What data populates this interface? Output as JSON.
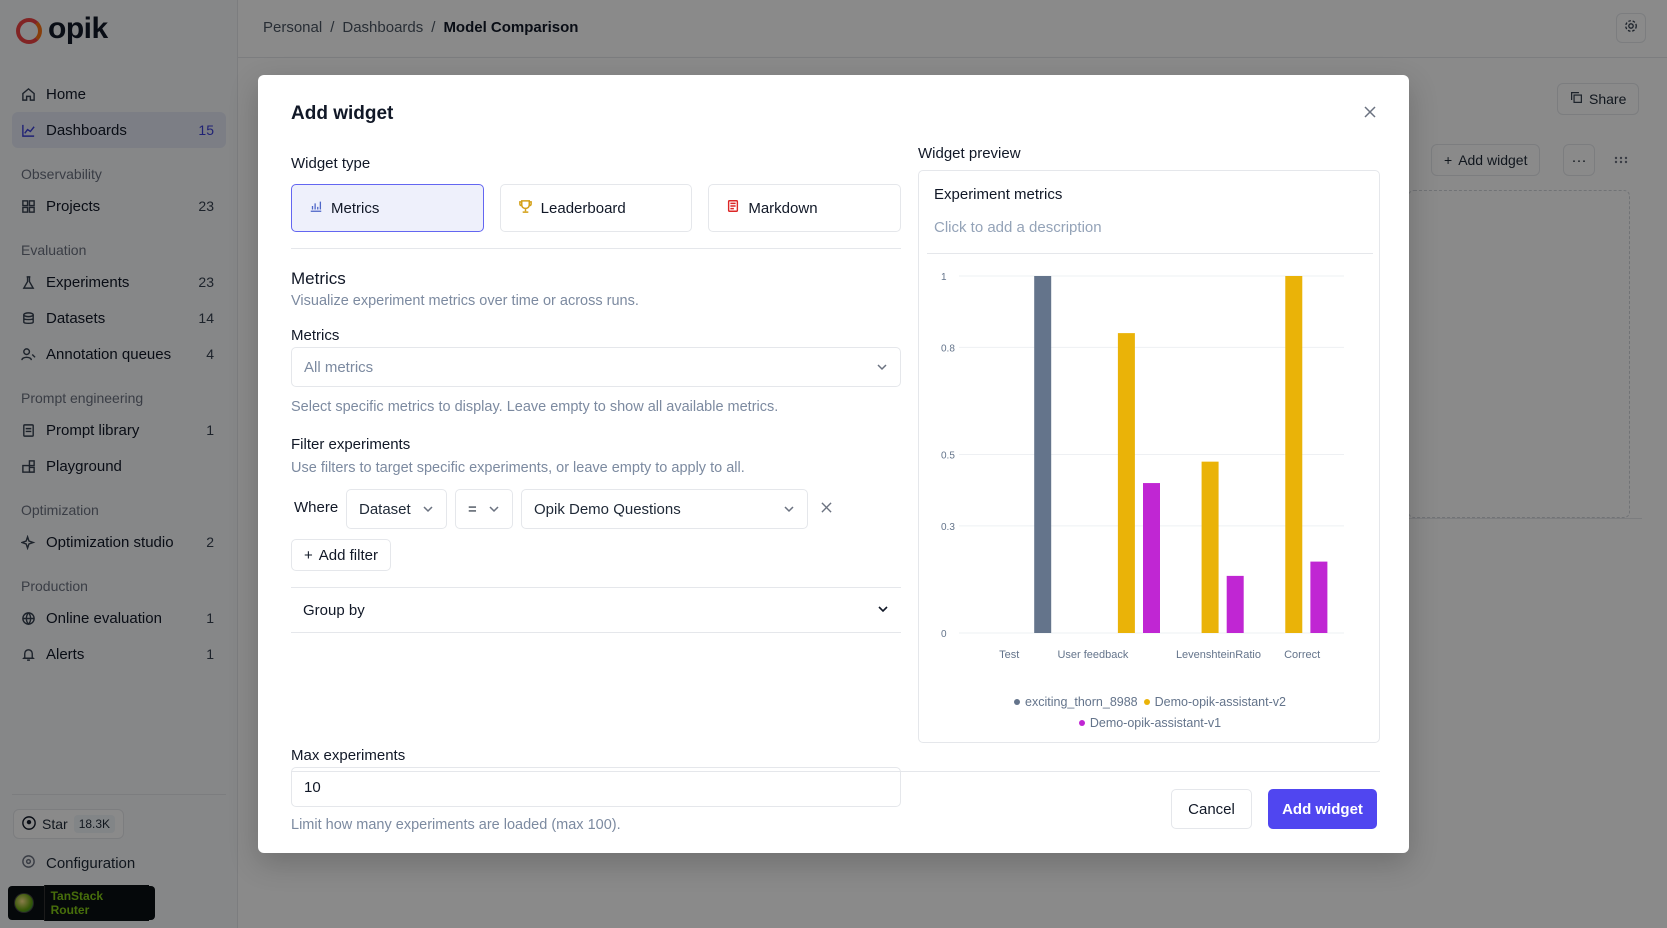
{
  "app": {
    "logo_text": "opik"
  },
  "topbar": {
    "breadcrumb": [
      "Personal",
      "Dashboards",
      "Model Comparison"
    ]
  },
  "sidebar": {
    "home": {
      "label": "Home"
    },
    "dashboards": {
      "label": "Dashboards",
      "count": "15"
    },
    "sections": {
      "observability": "Observability",
      "evaluation": "Evaluation",
      "prompt_engineering": "Prompt engineering",
      "optimization": "Optimization",
      "production": "Production"
    },
    "projects": {
      "label": "Projects",
      "count": "23"
    },
    "experiments": {
      "label": "Experiments",
      "count": "23"
    },
    "datasets": {
      "label": "Datasets",
      "count": "14"
    },
    "annotation_queues": {
      "label": "Annotation queues",
      "count": "4"
    },
    "prompt_library": {
      "label": "Prompt library",
      "count": "1"
    },
    "playground": {
      "label": "Playground"
    },
    "optimization_studio": {
      "label": "Optimization studio",
      "count": "2"
    },
    "online_evaluation": {
      "label": "Online evaluation",
      "count": "1"
    },
    "alerts": {
      "label": "Alerts",
      "count": "1"
    },
    "star": {
      "label": "Star",
      "count": "18.3K"
    },
    "configuration": "Configuration",
    "devtools": "TanStack Router"
  },
  "background": {
    "share_label": "Share",
    "add_widget_label": "Add widget"
  },
  "modal": {
    "title": "Add widget",
    "widget_type_label": "Widget type",
    "types": [
      {
        "label": "Metrics"
      },
      {
        "label": "Leaderboard"
      },
      {
        "label": "Markdown"
      }
    ],
    "metrics_heading": "Metrics",
    "metrics_desc": "Visualize experiment metrics over time or across runs.",
    "metrics_field_label": "Metrics",
    "metrics_placeholder": "All metrics",
    "metrics_help": "Select specific metrics to display. Leave empty to show all available metrics.",
    "filter_label": "Filter experiments",
    "filter_help": "Use filters to target specific experiments, or leave empty to apply to all.",
    "filter": {
      "where": "Where",
      "field": "Dataset",
      "operator": "=",
      "value": "Opik Demo Questions"
    },
    "add_filter_label": "Add filter",
    "group_by_label": "Group by",
    "max_experiments_label": "Max experiments",
    "max_experiments_value": "10",
    "max_experiments_help": "Limit how many experiments are loaded (max 100).",
    "preview_label": "Widget preview",
    "preview_title": "Experiment metrics",
    "preview_desc": "Click to add a description",
    "cancel_label": "Cancel",
    "add_label": "Add widget"
  },
  "colors": {
    "accent": "#5046f0",
    "series_exciting": "#64748b",
    "series_v2": "#eab308",
    "series_v1": "#c026d3"
  },
  "chart_data": {
    "type": "bar",
    "categories": [
      "Test",
      "User feedback",
      "LevenshteinRatio",
      "Correct"
    ],
    "category_positions": [
      0,
      1,
      2.5,
      3.5
    ],
    "ytick_values": [
      0,
      0.3,
      0.5,
      0.8,
      1
    ],
    "ytick_labels": [
      "0",
      "0.3",
      "0.5",
      "0.8",
      "1"
    ],
    "ylim": [
      0,
      1
    ],
    "grid": true,
    "legend": "bottom",
    "bar_slots": 4.6,
    "series": [
      {
        "name": "exciting_thorn_8988",
        "color": "#64748b",
        "points": [
          [
            1.0,
            1.0
          ]
        ]
      },
      {
        "name": "Demo-opik-assistant-v2",
        "color": "#eab308",
        "points": [
          [
            2.0,
            0.84
          ],
          [
            3.0,
            0.48
          ],
          [
            4.0,
            1.0
          ]
        ]
      },
      {
        "name": "Demo-opik-assistant-v1",
        "color": "#c026d3",
        "points": [
          [
            2.3,
            0.42
          ],
          [
            3.3,
            0.16
          ],
          [
            4.3,
            0.2
          ]
        ]
      }
    ]
  }
}
